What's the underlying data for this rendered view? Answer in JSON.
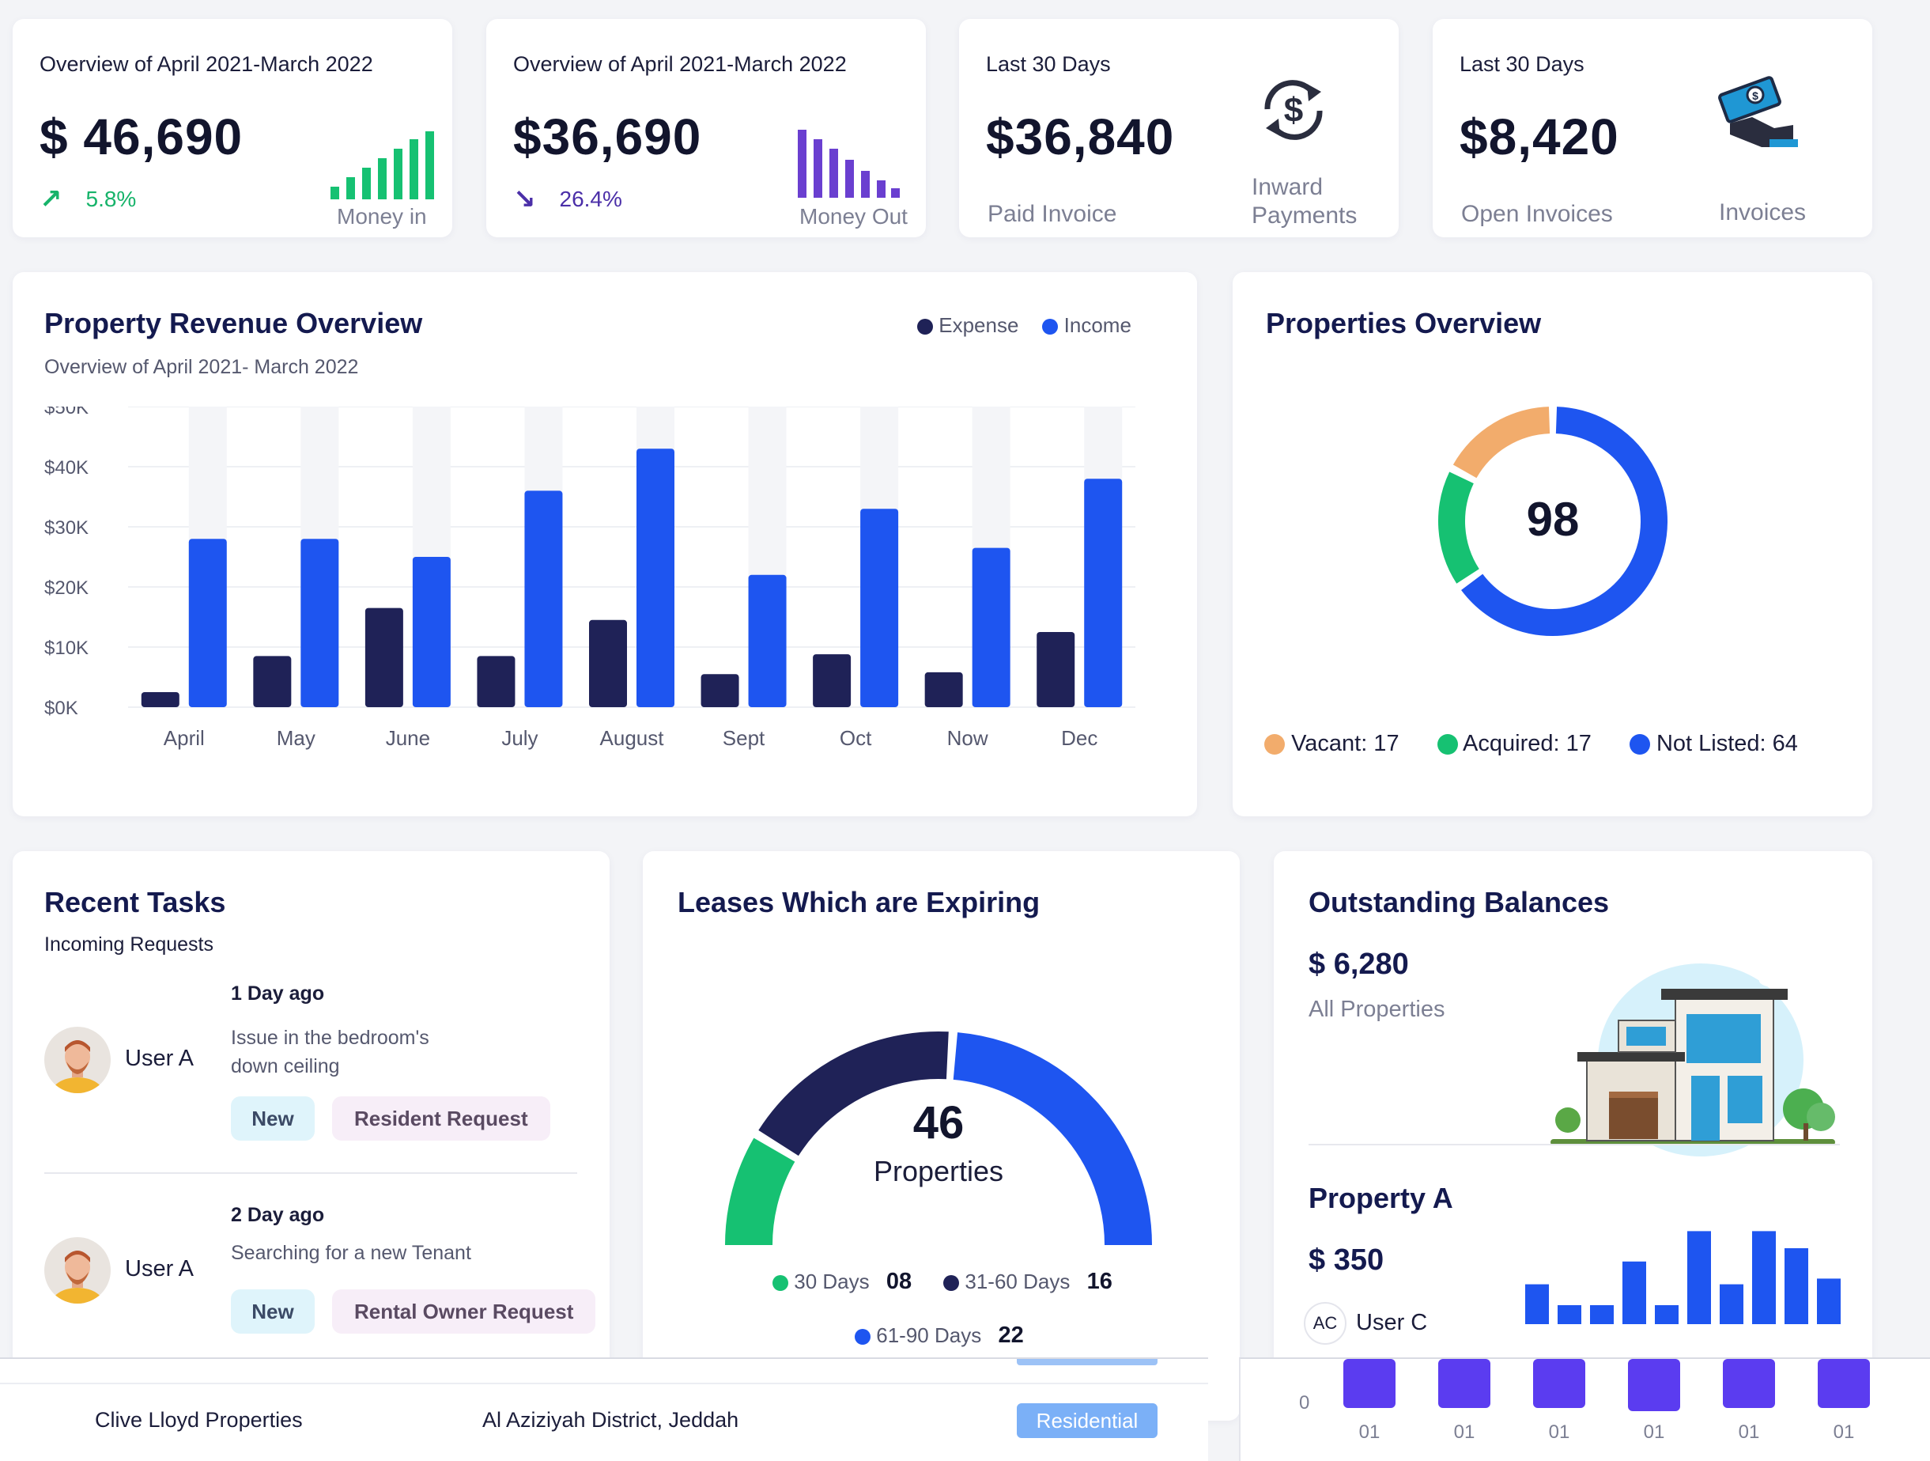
{
  "stats": [
    {
      "heading": "Overview of April 2021-March 2022",
      "value": "$ 46,690",
      "trend": "5.8%",
      "caption": "Money in"
    },
    {
      "heading": "Overview of April 2021-March 2022",
      "value": "$36,690",
      "trend": "26.4%",
      "caption": "Money Out"
    },
    {
      "heading": "Last 30 Days",
      "value": "$36,840",
      "caption": "Paid Invoice",
      "side_caption_1": "Inward",
      "side_caption_2": "Payments"
    },
    {
      "heading": "Last 30 Days",
      "value": "$8,420",
      "caption": "Open Invoices",
      "side_caption_1": "Invoices"
    }
  ],
  "colors": {
    "income": "#1e55f0",
    "expense": "#1f2257",
    "green": "#16c172",
    "orange": "#f2ac6c",
    "purple": "#6a3fd0",
    "violet": "#5b3cf0"
  },
  "revenue": {
    "title": "Property Revenue Overview",
    "subtitle": "Overview of April 2021- March 2022",
    "legend": [
      "Expense",
      "Income"
    ],
    "y_ticks": [
      "$50K",
      "$40K",
      "$30K",
      "$20K",
      "$10K",
      "$0K"
    ],
    "chart_data": {
      "type": "bar",
      "categories": [
        "April",
        "May",
        "June",
        "July",
        "August",
        "Sept",
        "Oct",
        "Now",
        "Dec"
      ],
      "series": [
        {
          "name": "Expense",
          "values": [
            2.5,
            8.5,
            16.5,
            8.5,
            14.5,
            5.5,
            8.8,
            5.8,
            12.5
          ]
        },
        {
          "name": "Income",
          "values": [
            28,
            28,
            25,
            36,
            43,
            22,
            33,
            26.5,
            38
          ]
        }
      ],
      "ylim": [
        0,
        50
      ]
    }
  },
  "properties": {
    "title": "Properties Overview",
    "total": "98",
    "legend": [
      {
        "label": "Vacant: 17",
        "value": 17
      },
      {
        "label": "Acquired: 17",
        "value": 17
      },
      {
        "label": "Not Listed: 64",
        "value": 64
      }
    ]
  },
  "tasks": {
    "title": "Recent Tasks",
    "subtitle": "Incoming Requests",
    "items": [
      {
        "user": "User A",
        "time": "1 Day ago",
        "desc_1": "Issue in the bedroom's",
        "desc_2": "down ceiling",
        "tag1": "New",
        "tag2": "Resident Request"
      },
      {
        "user": "User A",
        "time": "2 Day ago",
        "desc_1": "Searching for a new Tenant",
        "tag1": "New",
        "tag2": "Rental Owner Request"
      }
    ]
  },
  "leases": {
    "title": "Leases Which are Expiring",
    "total": "46",
    "unit": "Properties",
    "legend": [
      {
        "label": "30 Days",
        "value": "08"
      },
      {
        "label": "31-60 Days",
        "value": "16"
      },
      {
        "label": "61-90 Days",
        "value": "22"
      }
    ]
  },
  "balances": {
    "title": "Outstanding Balances",
    "amount": "$ 6,280",
    "caption": "All Properties",
    "property_name": "Property A",
    "property_amount": "$ 350",
    "user_initials": "AC",
    "user_name": "User C",
    "mini_bars": [
      0.42,
      0.2,
      0.2,
      0.66,
      0.2,
      0.98,
      0.42,
      0.98,
      0.8,
      0.48
    ]
  },
  "footer_row": {
    "name": "Clive Lloyd Properties",
    "location": "Al Aziziyah District, Jeddah",
    "badge": "Residential"
  },
  "bottom_chart": {
    "zero": "0",
    "labels": [
      "01",
      "01",
      "01",
      "01",
      "01",
      "01"
    ]
  }
}
